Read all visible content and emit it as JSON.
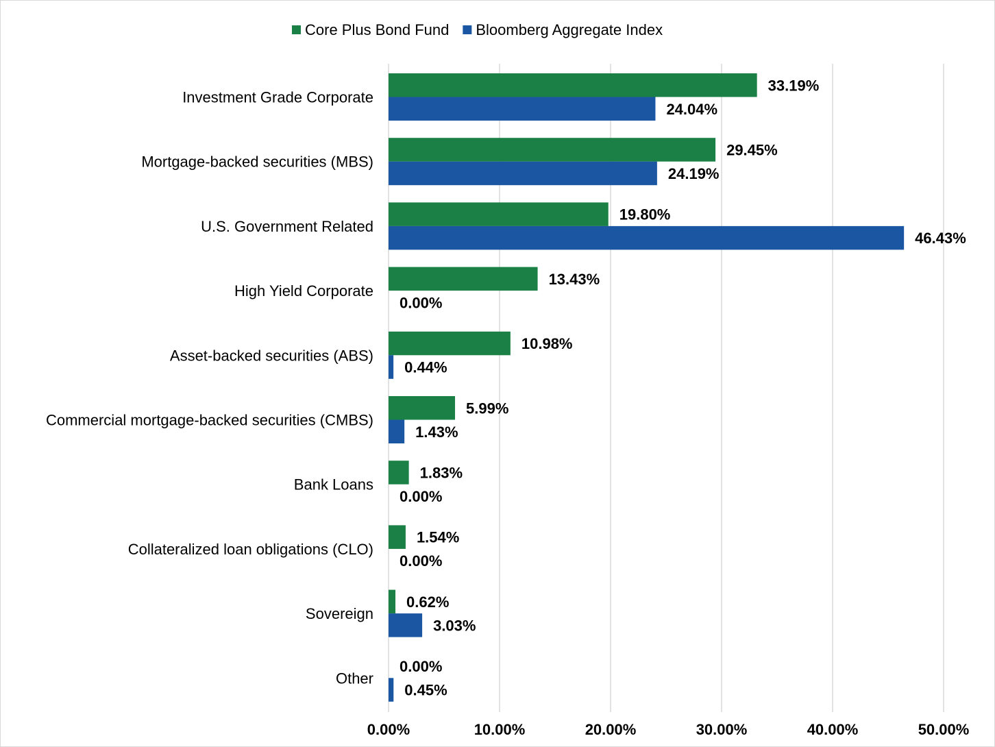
{
  "chart_data": {
    "type": "bar",
    "orientation": "horizontal",
    "categories": [
      "Investment Grade Corporate",
      "Mortgage-backed securities (MBS)",
      "U.S. Government Related",
      "High Yield Corporate",
      "Asset-backed securities (ABS)",
      "Commercial mortgage-backed securities (CMBS)",
      "Bank Loans",
      "Collateralized loan obligations (CLO)",
      "Sovereign",
      "Other"
    ],
    "series": [
      {
        "name": "Core Plus Bond Fund",
        "color": "#1a8045",
        "values": [
          33.19,
          29.45,
          19.8,
          13.43,
          10.98,
          5.99,
          1.83,
          1.54,
          0.62,
          0.0
        ],
        "labels": [
          "33.19%",
          "29.45%",
          "19.80%",
          "13.43%",
          "10.98%",
          "5.99%",
          "1.83%",
          "1.54%",
          "0.62%",
          "0.00%"
        ]
      },
      {
        "name": "Bloomberg Aggregate Index",
        "color": "#1b56a3",
        "values": [
          24.04,
          24.19,
          46.43,
          0.0,
          0.44,
          1.43,
          0.0,
          0.0,
          3.03,
          0.45
        ],
        "labels": [
          "24.04%",
          "24.19%",
          "46.43%",
          "0.00%",
          "0.44%",
          "1.43%",
          "0.00%",
          "0.00%",
          "3.03%",
          "0.45%"
        ]
      }
    ],
    "xlim": [
      0,
      50
    ],
    "xticks": [
      0,
      10,
      20,
      30,
      40,
      50
    ],
    "xtick_labels": [
      "0.00%",
      "10.00%",
      "20.00%",
      "30.00%",
      "40.00%",
      "50.00%"
    ],
    "title": "",
    "xlabel": "",
    "ylabel": "",
    "grid": "vertical",
    "legend_position": "top-center"
  }
}
